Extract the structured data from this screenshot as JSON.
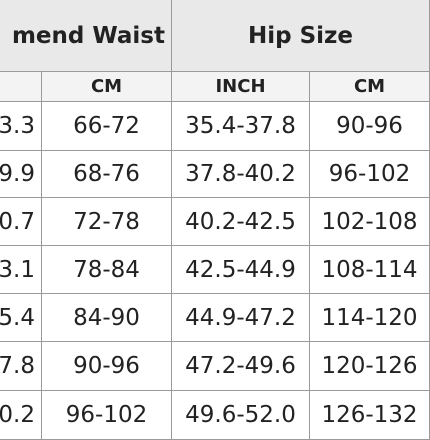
{
  "table": {
    "header_groups": [
      "mend Waist",
      "Hip Size"
    ],
    "subheaders": [
      "CM",
      "INCH",
      "CM"
    ],
    "rows": [
      [
        "3.3",
        "66-72",
        "35.4-37.8",
        "90-96"
      ],
      [
        "9.9",
        "68-76",
        "37.8-40.2",
        "96-102"
      ],
      [
        "0.7",
        "72-78",
        "40.2-42.5",
        "102-108"
      ],
      [
        "3.1",
        "78-84",
        "42.5-44.9",
        "108-114"
      ],
      [
        "5.4",
        "84-90",
        "44.9-47.2",
        "114-120"
      ],
      [
        "7.8",
        "90-96",
        "47.2-49.6",
        "120-126"
      ],
      [
        "0.2",
        "96-102",
        "49.6-52.0",
        "126-132"
      ]
    ]
  }
}
